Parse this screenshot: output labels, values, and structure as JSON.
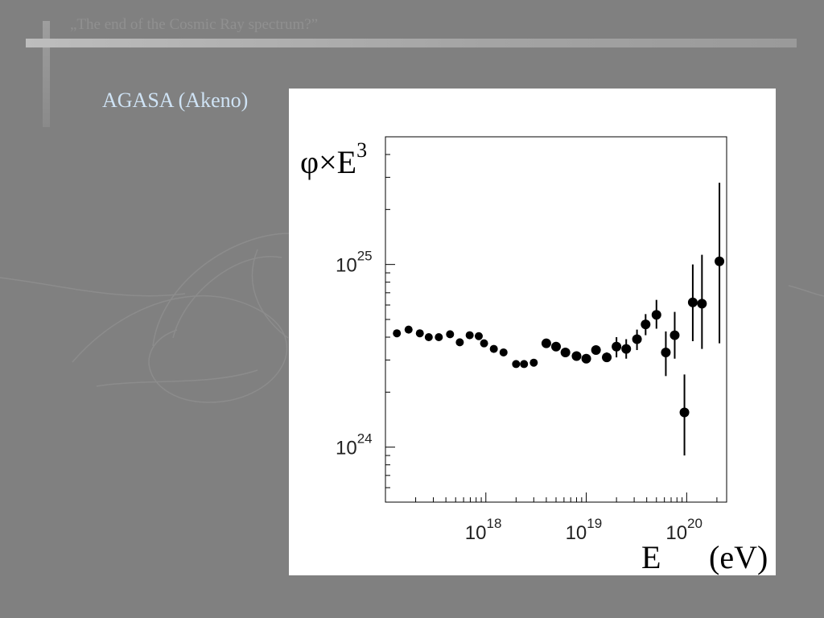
{
  "slide": {
    "title": "„The end of the Cosmic Ray spectrum?”",
    "subtitle": "AGASA (Akeno)"
  },
  "chart_data": {
    "type": "scatter",
    "title": "",
    "ylabel": {
      "base": "φ×E",
      "exp": "3"
    },
    "xlabel": {
      "var": "E",
      "unit": "(eV)"
    },
    "x_scale": "log",
    "y_scale": "log",
    "xlim": [
      1e+17,
      2.5e+20
    ],
    "ylim": [
      5e+23,
      5e+25
    ],
    "x_ticks": [
      {
        "base": "10",
        "exp": "18",
        "value": 1e+18
      },
      {
        "base": "10",
        "exp": "19",
        "value": 1e+19
      },
      {
        "base": "10",
        "exp": "20",
        "value": 1e+20
      }
    ],
    "y_ticks": [
      {
        "base": "10",
        "exp": "24",
        "value": 1e+24
      },
      {
        "base": "10",
        "exp": "25",
        "value": 1e+25
      }
    ],
    "grid": false,
    "legend": "none",
    "marker_color": "#000000",
    "points": [
      {
        "x": 1.3e+17,
        "y": 4.2e+24,
        "ylo": 4.2e+24,
        "yhi": 4.2e+24
      },
      {
        "x": 1.7e+17,
        "y": 4.4e+24,
        "ylo": 4.4e+24,
        "yhi": 4.4e+24
      },
      {
        "x": 2.2e+17,
        "y": 4.2e+24,
        "ylo": 4.2e+24,
        "yhi": 4.2e+24
      },
      {
        "x": 2.7e+17,
        "y": 4e+24,
        "ylo": 4e+24,
        "yhi": 4e+24
      },
      {
        "x": 3.4e+17,
        "y": 4e+24,
        "ylo": 4e+24,
        "yhi": 4e+24
      },
      {
        "x": 4.4e+17,
        "y": 4.15e+24,
        "ylo": 4.15e+24,
        "yhi": 4.15e+24
      },
      {
        "x": 5.5e+17,
        "y": 3.75e+24,
        "ylo": 3.75e+24,
        "yhi": 3.75e+24
      },
      {
        "x": 6.9e+17,
        "y": 4.1e+24,
        "ylo": 4.1e+24,
        "yhi": 4.1e+24
      },
      {
        "x": 8.5e+17,
        "y": 4.05e+24,
        "ylo": 4.05e+24,
        "yhi": 4.05e+24
      },
      {
        "x": 9.6e+17,
        "y": 3.7e+24,
        "ylo": 3.7e+24,
        "yhi": 3.7e+24
      },
      {
        "x": 1.2e+18,
        "y": 3.45e+24,
        "ylo": 3.45e+24,
        "yhi": 3.45e+24
      },
      {
        "x": 1.5e+18,
        "y": 3.3e+24,
        "ylo": 3.3e+24,
        "yhi": 3.3e+24
      },
      {
        "x": 2e+18,
        "y": 2.85e+24,
        "ylo": 2.85e+24,
        "yhi": 2.85e+24
      },
      {
        "x": 2.4e+18,
        "y": 2.85e+24,
        "ylo": 2.85e+24,
        "yhi": 2.85e+24
      },
      {
        "x": 3e+18,
        "y": 2.9e+24,
        "ylo": 2.8e+24,
        "yhi": 3e+24
      },
      {
        "x": 4e+18,
        "y": 3.7e+24,
        "ylo": 3.7e+24,
        "yhi": 3.7e+24
      },
      {
        "x": 5e+18,
        "y": 3.55e+24,
        "ylo": 3.55e+24,
        "yhi": 3.55e+24
      },
      {
        "x": 6.2e+18,
        "y": 3.3e+24,
        "ylo": 3.3e+24,
        "yhi": 3.3e+24
      },
      {
        "x": 8e+18,
        "y": 3.15e+24,
        "ylo": 3.15e+24,
        "yhi": 3.15e+24
      },
      {
        "x": 1e+19,
        "y": 3.05e+24,
        "ylo": 2.95e+24,
        "yhi": 3.15e+24
      },
      {
        "x": 1.25e+19,
        "y": 3.4e+24,
        "ylo": 3.25e+24,
        "yhi": 3.55e+24
      },
      {
        "x": 1.6e+19,
        "y": 3.1e+24,
        "ylo": 2.95e+24,
        "yhi": 3.3e+24
      },
      {
        "x": 2e+19,
        "y": 3.55e+24,
        "ylo": 3.1e+24,
        "yhi": 4e+24
      },
      {
        "x": 2.5e+19,
        "y": 3.45e+24,
        "ylo": 3.05e+24,
        "yhi": 3.9e+24
      },
      {
        "x": 3.2e+19,
        "y": 3.9e+24,
        "ylo": 3.4e+24,
        "yhi": 4.4e+24
      },
      {
        "x": 3.9e+19,
        "y": 4.7e+24,
        "ylo": 4.1e+24,
        "yhi": 5.35e+24
      },
      {
        "x": 5e+19,
        "y": 5.3e+24,
        "ylo": 4.45e+24,
        "yhi": 6.4e+24
      },
      {
        "x": 6.2e+19,
        "y": 3.3e+24,
        "ylo": 2.45e+24,
        "yhi": 4.3e+24
      },
      {
        "x": 7.6e+19,
        "y": 4.1e+24,
        "ylo": 3.05e+24,
        "yhi": 5.5e+24
      },
      {
        "x": 9.5e+19,
        "y": 1.55e+24,
        "ylo": 9e+23,
        "yhi": 2.5e+24
      },
      {
        "x": 1.15e+20,
        "y": 6.2e+24,
        "ylo": 3.8e+24,
        "yhi": 1e+25
      },
      {
        "x": 1.42e+20,
        "y": 6.1e+24,
        "ylo": 3.45e+24,
        "yhi": 1.13e+25
      },
      {
        "x": 2.12e+20,
        "y": 1.04e+25,
        "ylo": 3.7e+24,
        "yhi": 2.8e+25
      }
    ]
  }
}
